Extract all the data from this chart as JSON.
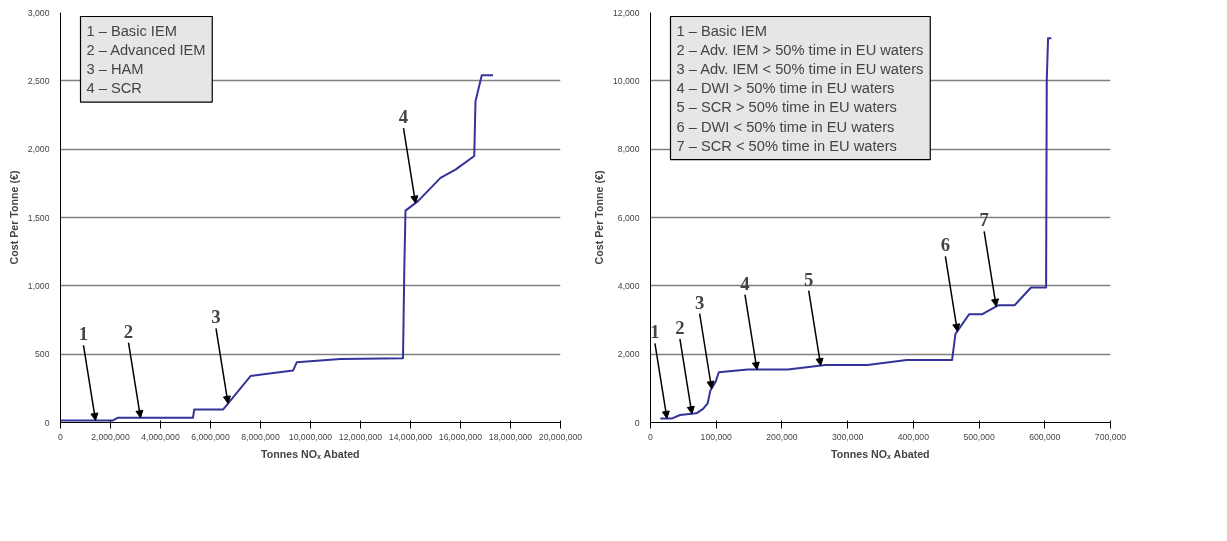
{
  "chart_data": [
    {
      "type": "line",
      "xlabel": "Tonnes NOₓ Abated",
      "ylabel": "Cost Per Tonne (€)",
      "x": [
        0,
        2100000,
        2300000,
        5300000,
        5350000,
        6500000,
        7600000,
        9300000,
        9450000,
        11200000,
        13700000,
        13750000,
        13800000,
        14300000,
        15200000,
        15800000,
        16550000,
        16600000,
        16850000,
        17300000
      ],
      "series": [
        {
          "color": "#333399",
          "values": [
            15,
            15,
            35,
            35,
            95,
            95,
            340,
            380,
            440,
            465,
            470,
            1100,
            1550,
            1620,
            1790,
            1850,
            1950,
            2350,
            2540,
            2540
          ]
        }
      ],
      "xlim": [
        0,
        20000000
      ],
      "ylim": [
        0,
        3000
      ],
      "xticks": [
        0,
        {
          "value": 2000000,
          "label": "2,000,000"
        },
        {
          "value": 4000000,
          "label": "4,000,000"
        },
        {
          "value": 6000000,
          "label": "6,000,000"
        },
        {
          "value": 8000000,
          "label": "8,000,000"
        },
        {
          "value": 10000000,
          "label": "10,000,000"
        },
        {
          "value": 12000000,
          "label": "12,000,000"
        },
        {
          "value": 14000000,
          "label": "14,000,000"
        },
        {
          "value": 16000000,
          "label": "16,000,000"
        },
        {
          "value": 18000000,
          "label": "18,000,000"
        },
        {
          "value": 20000000,
          "label": "20,000,000"
        }
      ],
      "yticks": [
        0,
        500,
        {
          "value": 1000,
          "label": "1,000"
        },
        {
          "value": 1500,
          "label": "1,500"
        },
        {
          "value": 2000,
          "label": "2,000"
        },
        {
          "value": 2500,
          "label": "2,500"
        },
        {
          "value": 3000,
          "label": "3,000"
        }
      ],
      "grid": "y",
      "marker": "none",
      "line_style": "solid",
      "annotations": [
        {
          "text": "1",
          "x": 1400000,
          "y": 15
        },
        {
          "text": "2",
          "x": 3200000,
          "y": 35
        },
        {
          "text": "3",
          "x": 6700000,
          "y": 140
        },
        {
          "text": "4",
          "x": 14200000,
          "y": 1605
        },
        "1 – Basic IEM",
        "2 – Advanced IEM",
        "3 – HAM",
        "4 – SCR"
      ]
    },
    {
      "type": "line",
      "xlabel": "Tonnes NOₓ Abated",
      "ylabel": "Cost Per Tonne (€)",
      "x": [
        15000,
        33000,
        45000,
        66000,
        71000,
        80000,
        87000,
        91000,
        99000,
        104000,
        148000,
        209000,
        266000,
        330000,
        390000,
        459000,
        464000,
        485000,
        505000,
        529000,
        554000,
        579000,
        602000,
        603000,
        605000,
        610000
      ],
      "series": [
        {
          "color": "#333399",
          "values": [
            120,
            120,
            220,
            260,
            280,
            400,
            560,
            930,
            1190,
            1470,
            1550,
            1550,
            1680,
            1680,
            1830,
            1830,
            2590,
            3170,
            3170,
            3430,
            3430,
            3950,
            3950,
            10000,
            11250,
            11250
          ]
        }
      ],
      "xlim": [
        0,
        700000
      ],
      "ylim": [
        0,
        12000
      ],
      "xticks": [
        0,
        {
          "value": 100000,
          "label": "100,000"
        },
        {
          "value": 200000,
          "label": "200,000"
        },
        {
          "value": 300000,
          "label": "300,000"
        },
        {
          "value": 400000,
          "label": "400,000"
        },
        {
          "value": 500000,
          "label": "500,000"
        },
        {
          "value": 600000,
          "label": "600,000"
        },
        {
          "value": 700000,
          "label": "700,000"
        }
      ],
      "yticks": [
        0,
        {
          "value": 2000,
          "label": "2,000"
        },
        {
          "value": 4000,
          "label": "4,000"
        },
        {
          "value": 6000,
          "label": "6,000"
        },
        {
          "value": 8000,
          "label": "8,000"
        },
        {
          "value": 10000,
          "label": "10,000"
        },
        {
          "value": 12000,
          "label": "12,000"
        }
      ],
      "grid": "y",
      "marker": "none",
      "line_style": "solid",
      "annotations": [
        {
          "text": "1",
          "x": 25000,
          "y": 120
        },
        {
          "text": "2",
          "x": 63000,
          "y": 255
        },
        {
          "text": "3",
          "x": 93000,
          "y": 995
        },
        {
          "text": "4",
          "x": 162000,
          "y": 1550
        },
        {
          "text": "5",
          "x": 259000,
          "y": 1665
        },
        {
          "text": "6",
          "x": 467000,
          "y": 2670
        },
        {
          "text": "7",
          "x": 526000,
          "y": 3400
        },
        "1 – Basic IEM",
        "2 – Adv. IEM > 50% time in EU waters",
        "3 – Adv. IEM < 50% time in EU waters",
        "4 – DWI > 50% time in EU waters",
        "5 – SCR > 50% time in EU waters",
        "6 – DWI < 50% time in EU waters",
        "7 – SCR < 50% time in EU waters"
      ]
    }
  ]
}
